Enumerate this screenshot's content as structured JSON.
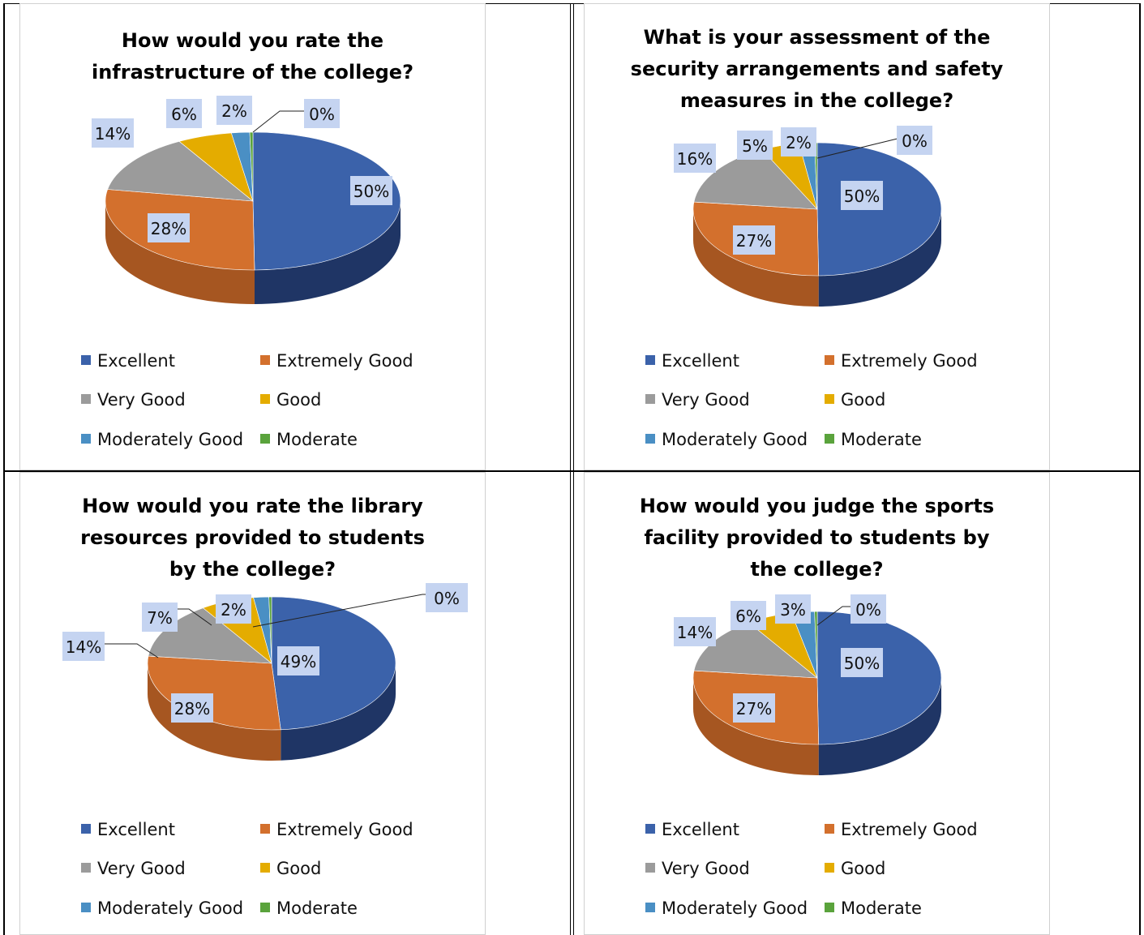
{
  "legend_labels": [
    "Excellent",
    "Extremely Good",
    "Very Good",
    "Good",
    "Moderately Good",
    "Moderate"
  ],
  "colors": {
    "excellent": "#3b62aa",
    "extremely_good": "#d3702d",
    "very_good": "#9b9b9b",
    "good": "#e4ac00",
    "moderately_good": "#4a8fc4",
    "moderate": "#5aa33c",
    "label_fill": "#c5d4f1"
  },
  "chart_data": [
    {
      "type": "pie",
      "title": "How would you rate the\ninfrastructure of the college?",
      "categories": [
        "Excellent",
        "Extremely Good",
        "Very Good",
        "Good",
        "Moderately Good",
        "Moderate"
      ],
      "values": [
        50,
        28,
        14,
        6,
        2,
        0
      ],
      "labels": [
        "50%",
        "28%",
        "14%",
        "6%",
        "2%",
        "0%"
      ],
      "style": "3d",
      "legend_position": "bottom"
    },
    {
      "type": "pie",
      "title": "What is your assessment of the\nsecurity arrangements and safety\nmeasures in the college?",
      "categories": [
        "Excellent",
        "Extremely Good",
        "Very Good",
        "Good",
        "Moderately Good",
        "Moderate"
      ],
      "values": [
        50,
        27,
        16,
        5,
        2,
        0
      ],
      "labels": [
        "50%",
        "27%",
        "16%",
        "5%",
        "2%",
        "0%"
      ],
      "style": "3d",
      "legend_position": "bottom"
    },
    {
      "type": "pie",
      "title": "How would you rate the library\nresources provided to students\nby the college?",
      "categories": [
        "Excellent",
        "Extremely Good",
        "Very Good",
        "Good",
        "Moderately Good",
        "Moderate"
      ],
      "values": [
        49,
        28,
        14,
        7,
        2,
        0
      ],
      "labels": [
        "49%",
        "28%",
        "14%",
        "7%",
        "2%",
        "0%"
      ],
      "style": "3d",
      "legend_position": "bottom"
    },
    {
      "type": "pie",
      "title": "How would you judge the sports\nfacility provided to students by\nthe college?",
      "categories": [
        "Excellent",
        "Extremely Good",
        "Very Good",
        "Good",
        "Moderately Good",
        "Moderate"
      ],
      "values": [
        50,
        27,
        14,
        6,
        3,
        0
      ],
      "labels": [
        "50%",
        "27%",
        "14%",
        "6%",
        "3%",
        "0%"
      ],
      "style": "3d",
      "legend_position": "bottom"
    }
  ]
}
